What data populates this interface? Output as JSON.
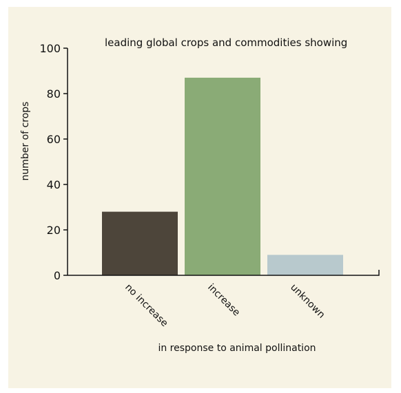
{
  "chart_data": {
    "type": "bar",
    "title": "leading global crops and commodities showing",
    "xlabel": "in response to animal pollination",
    "ylabel": "number of crops",
    "categories": [
      "no increase",
      "increase",
      "unknown"
    ],
    "values": [
      28,
      87,
      9
    ],
    "yticks": [
      0,
      20,
      40,
      60,
      80,
      100
    ],
    "ylim": [
      0,
      100
    ],
    "colors": [
      "#4d453a",
      "#8aab76",
      "#b8c9cd"
    ],
    "grid": false,
    "legend": "none"
  }
}
